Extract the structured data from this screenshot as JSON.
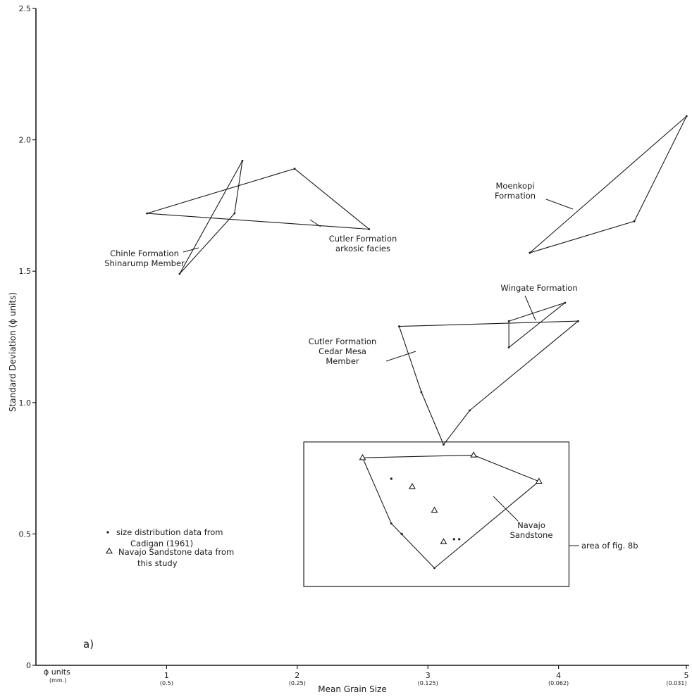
{
  "chart_data": {
    "type": "scatter",
    "panel_label": "a)",
    "xlabel": "Mean Grain Size",
    "ylabel": "Standard Deviation (ϕ units)",
    "x_unit_label": "ϕ units",
    "x_unit_sublabel": "(mm.)",
    "xlim": [
      0,
      5
    ],
    "ylim": [
      0,
      2.5
    ],
    "x_ticks": [
      {
        "value": 1,
        "label": "1",
        "mm": "(0.5)"
      },
      {
        "value": 2,
        "label": "2",
        "mm": "(0.25)"
      },
      {
        "value": 3,
        "label": "3",
        "mm": "(0.125)"
      },
      {
        "value": 4,
        "label": "4",
        "mm": "(0.062)"
      },
      {
        "value": 5,
        "label": "5",
        "mm": "(0.031)"
      }
    ],
    "y_ticks": [
      {
        "value": 0,
        "label": "0"
      },
      {
        "value": 0.5,
        "label": "0.5"
      },
      {
        "value": 1.0,
        "label": "1.0"
      },
      {
        "value": 1.5,
        "label": "1.5"
      },
      {
        "value": 2.0,
        "label": "2.0"
      },
      {
        "value": 2.5,
        "label": "2.5"
      }
    ],
    "fields": [
      {
        "name": "Chinle Formation Shinarump Member",
        "label_lines": [
          "Chinle Formation",
          "Shinarump Member"
        ],
        "vertices": [
          [
            1.58,
            1.92
          ],
          [
            1.52,
            1.72
          ],
          [
            1.1,
            1.49
          ]
        ]
      },
      {
        "name": "Cutler Formation arkosic facies",
        "label_lines": [
          "Cutler Formation",
          "arkosic facies"
        ],
        "vertices": [
          [
            0.85,
            1.72
          ],
          [
            1.98,
            1.89
          ],
          [
            2.55,
            1.66
          ]
        ]
      },
      {
        "name": "Moenkopi Formation",
        "label_lines": [
          "Moenkopi",
          "Formation"
        ],
        "vertices": [
          [
            3.78,
            1.57
          ],
          [
            4.98,
            2.09
          ],
          [
            4.58,
            1.69
          ]
        ]
      },
      {
        "name": "Wingate Formation",
        "label_lines": [
          "Wingate Formation"
        ],
        "vertices": [
          [
            3.62,
            1.21
          ],
          [
            3.62,
            1.31
          ],
          [
            4.05,
            1.38
          ]
        ]
      },
      {
        "name": "Cutler Formation Cedar Mesa Member",
        "label_lines": [
          "Cutler Formation",
          "Cedar Mesa",
          "Member"
        ],
        "vertices": [
          [
            2.78,
            1.29
          ],
          [
            4.15,
            1.31
          ],
          [
            3.32,
            0.97
          ],
          [
            3.12,
            0.84
          ],
          [
            2.95,
            1.04
          ]
        ]
      },
      {
        "name": "Navajo Sandstone",
        "label_lines": [
          "Navajo",
          "Sandstone"
        ],
        "vertices": [
          [
            2.5,
            0.79
          ],
          [
            3.35,
            0.8
          ],
          [
            3.85,
            0.7
          ],
          [
            3.05,
            0.37
          ],
          [
            2.72,
            0.54
          ]
        ]
      }
    ],
    "series": [
      {
        "name": "Navajo Sandstone data from this study",
        "marker": "triangle",
        "points": [
          [
            2.5,
            0.79
          ],
          [
            3.35,
            0.8
          ],
          [
            3.85,
            0.7
          ],
          [
            2.88,
            0.68
          ],
          [
            3.05,
            0.59
          ],
          [
            3.12,
            0.47
          ]
        ]
      },
      {
        "name": "size distribution data from Cadigan (1961)",
        "marker": "dot",
        "points": [
          [
            2.72,
            0.71
          ],
          [
            2.8,
            0.5
          ],
          [
            3.2,
            0.48
          ],
          [
            3.24,
            0.48
          ]
        ]
      }
    ],
    "legend": {
      "position": "lower-left",
      "dot_lines": [
        "size distribution data from",
        "Cadigan (1961)"
      ],
      "triangle_lines": [
        "Navajo Sandstone data from",
        "this study"
      ]
    },
    "inset_box": {
      "x": [
        2.05,
        4.08
      ],
      "y": [
        0.3,
        0.85
      ],
      "label": "area of fig. 8b"
    }
  }
}
